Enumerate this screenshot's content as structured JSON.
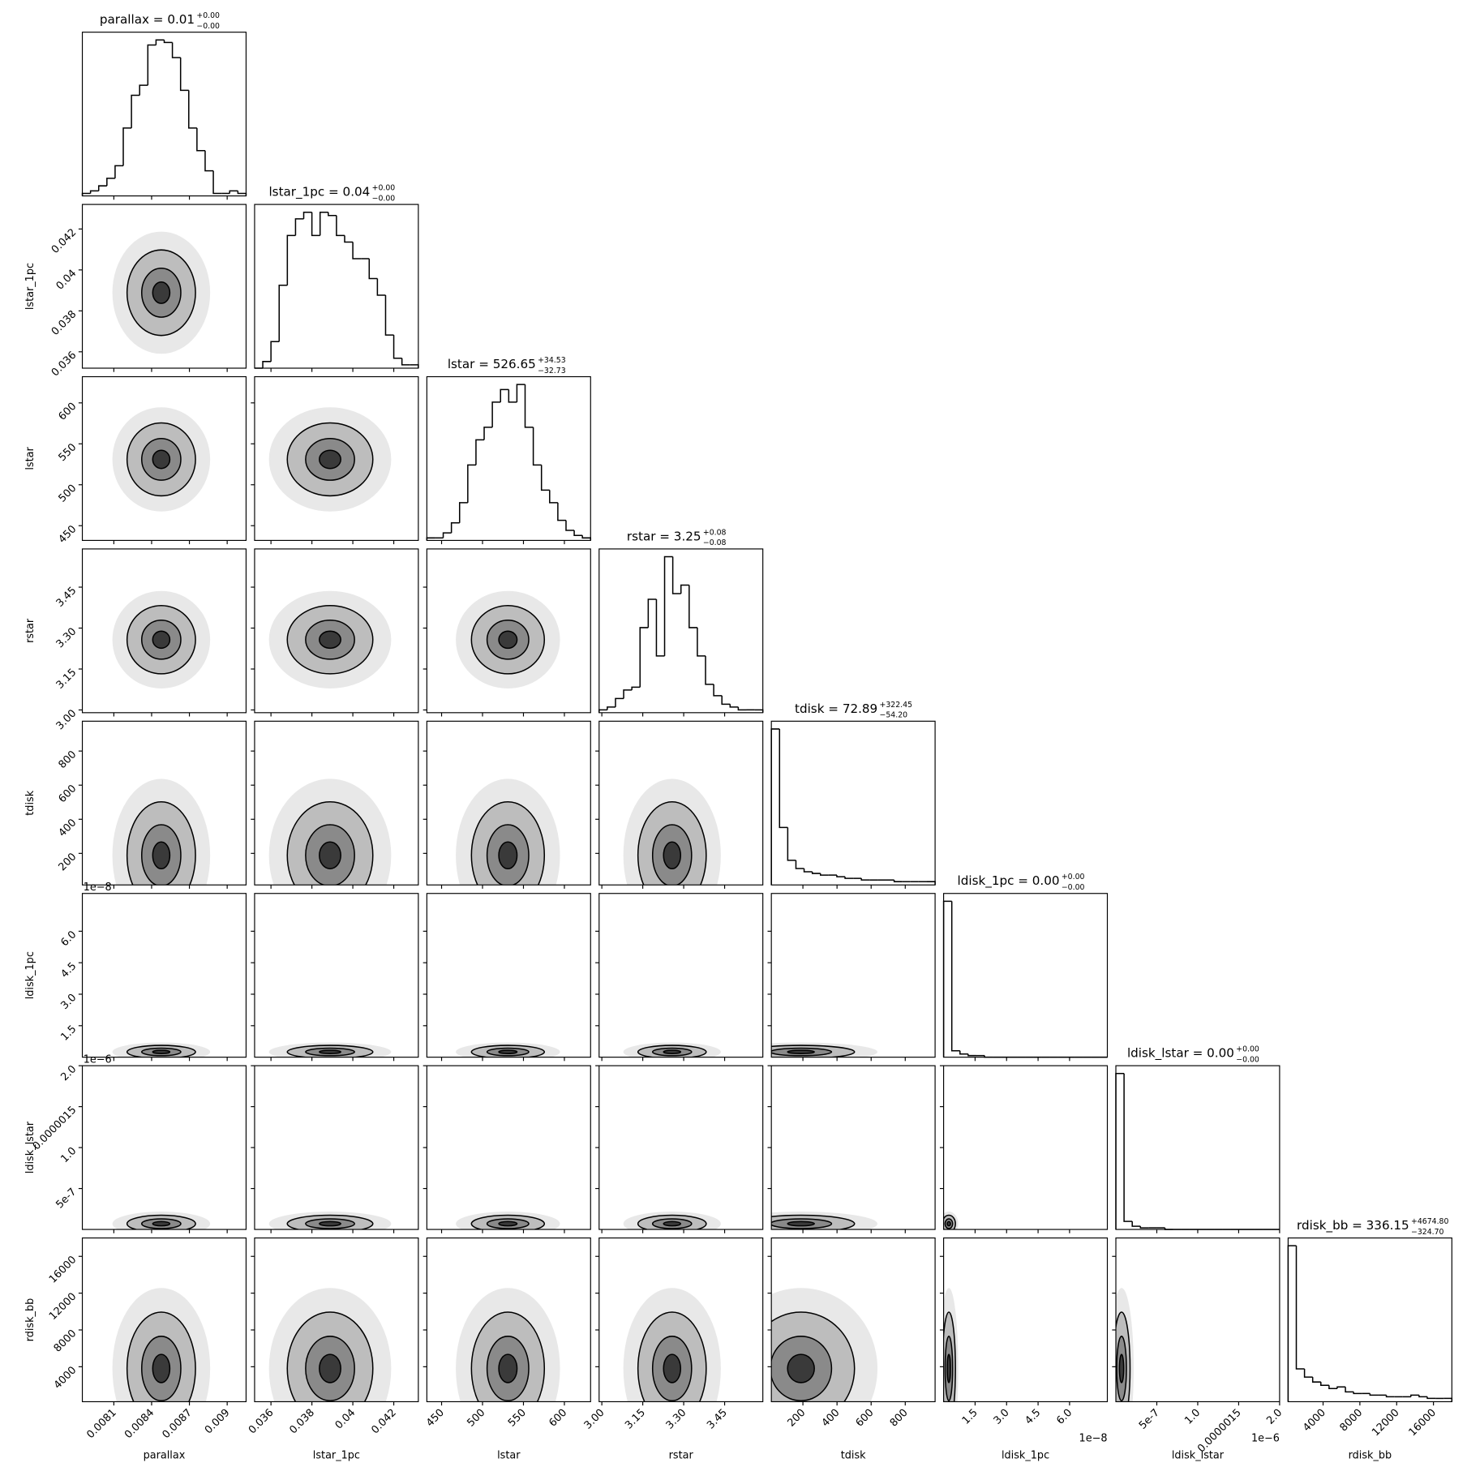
{
  "chart_data": [
    {
      "type": "histogram",
      "title": "parallax = 0.01",
      "title_upper": "+0.00",
      "title_lower": "−0.00",
      "xlabel": "parallax",
      "bins": [
        0.00785,
        0.007915,
        0.00798,
        0.008045,
        0.00811,
        0.008175,
        0.00824,
        0.008305,
        0.00837,
        0.008435,
        0.0085,
        0.008565,
        0.00863,
        0.008695,
        0.00876,
        0.008825,
        0.00889,
        0.008955,
        0.00902,
        0.009085,
        0.00915
      ],
      "values": [
        1,
        2,
        4,
        7,
        12,
        27,
        40,
        44,
        60,
        62,
        61,
        55,
        42,
        27,
        18,
        10,
        1,
        1,
        2,
        1
      ],
      "xlim": [
        0.00785,
        0.00915
      ],
      "xticks": [
        0.0081,
        0.0084,
        0.0087,
        0.009
      ],
      "color": "#000000"
    },
    {
      "type": "histogram",
      "title": "lstar_1pc = 0.04",
      "title_upper": "+0.00",
      "title_lower": "−0.00",
      "xlabel": "lstar_1pc",
      "bins": [
        0.0352,
        0.0356,
        0.036,
        0.0364,
        0.0368,
        0.0372,
        0.0376,
        0.038,
        0.0384,
        0.0388,
        0.0392,
        0.0396,
        0.04,
        0.0404,
        0.0408,
        0.0412,
        0.0416,
        0.042,
        0.0424,
        0.0428,
        0.0432
      ],
      "values": [
        0,
        2,
        8,
        25,
        40,
        45,
        47,
        40,
        47,
        46,
        40,
        38,
        33,
        33,
        27,
        22,
        10,
        3,
        1,
        1
      ],
      "xlim": [
        0.0352,
        0.0432
      ],
      "xticks": [
        0.036,
        0.038,
        0.04,
        0.042
      ],
      "color": "#000000"
    },
    {
      "type": "histogram",
      "title": "lstar = 526.65",
      "title_upper": "+34.53",
      "title_lower": "−32.73",
      "xlabel": "lstar",
      "bins": [
        432,
        442,
        452,
        462,
        472,
        482,
        492,
        502,
        512,
        522,
        532,
        542,
        552,
        562,
        572,
        582,
        592,
        602,
        612,
        622,
        632
      ],
      "values": [
        1,
        1,
        3,
        7,
        15,
        30,
        40,
        45,
        55,
        60,
        55,
        62,
        45,
        30,
        20,
        15,
        8,
        4,
        2,
        1
      ],
      "xlim": [
        432,
        632
      ],
      "xticks": [
        450,
        500,
        550,
        600
      ],
      "color": "#000000"
    },
    {
      "type": "histogram",
      "title": "rstar = 3.25",
      "title_upper": "+0.08",
      "title_lower": "−0.08",
      "xlabel": "rstar",
      "bins": [
        2.99,
        3.02,
        3.05,
        3.08,
        3.11,
        3.14,
        3.17,
        3.2,
        3.23,
        3.26,
        3.29,
        3.32,
        3.35,
        3.38,
        3.41,
        3.44,
        3.47,
        3.5,
        3.53,
        3.56,
        3.59
      ],
      "values": [
        1,
        2,
        5,
        8,
        9,
        30,
        40,
        20,
        55,
        42,
        45,
        30,
        20,
        10,
        6,
        3,
        2,
        1,
        1,
        1
      ],
      "xlim": [
        2.99,
        3.59
      ],
      "xticks": [
        {
          "value": 3,
          "label": "3.00"
        },
        3.15,
        {
          "value": 3.3,
          "label": "3.30"
        },
        3.45
      ],
      "color": "#000000"
    },
    {
      "type": "histogram",
      "title": "tdisk = 72.89",
      "title_upper": "+322.45",
      "title_lower": "−54.20",
      "xlabel": "tdisk",
      "bins": [
        15,
        63,
        111,
        159,
        207,
        255,
        303,
        351,
        399,
        447,
        495,
        543,
        591,
        639,
        687,
        735,
        783,
        831,
        879,
        927,
        975
      ],
      "values": [
        95,
        35,
        15,
        10,
        8,
        7,
        6,
        6,
        5,
        4,
        4,
        3,
        3,
        3,
        3,
        2,
        2,
        2,
        2,
        2
      ],
      "xlim": [
        15,
        975
      ],
      "xticks": [
        200,
        400,
        600,
        800
      ],
      "color": "#000000"
    },
    {
      "type": "histogram",
      "title": "ldisk_1pc = 0.00",
      "title_upper": "+0.00",
      "title_lower": "−0.00",
      "xlabel": "ldisk_1pc",
      "offset_label": "1e−8",
      "bins": [
        0,
        3.9e-09,
        7.8e-09,
        1.17e-08,
        1.56e-08,
        1.95e-08,
        2.34e-08,
        2.73e-08,
        3.12e-08,
        3.51e-08,
        3.9e-08,
        4.29e-08,
        4.68e-08,
        5.07e-08,
        5.46e-08,
        5.85e-08,
        6.24e-08,
        6.63e-08,
        7.02e-08,
        7.41e-08,
        7.8e-08
      ],
      "values": [
        98,
        4,
        2,
        1,
        1,
        0,
        0,
        0,
        0,
        0,
        0,
        0,
        0,
        0,
        0,
        0,
        0,
        0,
        0,
        0
      ],
      "xlim": [
        0,
        7.8e-08
      ],
      "xticks": [
        {
          "value": 1.5e-08,
          "label": "1.5"
        },
        {
          "value": 3e-08,
          "label": "3.0"
        },
        {
          "value": 4.5e-08,
          "label": "4.5"
        },
        {
          "value": 6e-08,
          "label": "6.0"
        }
      ],
      "color": "#000000"
    },
    {
      "type": "histogram",
      "title": "ldisk_lstar = 0.00",
      "title_upper": "+0.00",
      "title_lower": "−0.00",
      "xlabel": "ldisk_lstar",
      "offset_label": "1e−6",
      "bins": [
        0,
        1e-07,
        2e-07,
        3e-07,
        4e-07,
        5e-07,
        6e-07,
        7e-07,
        8e-07,
        9e-07,
        1e-06,
        1.1e-06,
        1.2e-06,
        1.3e-06,
        1.4e-06,
        1.5e-06,
        1.6e-06,
        1.7e-06,
        1.8e-06,
        1.9e-06,
        2e-06
      ],
      "values": [
        97,
        5,
        2,
        1,
        1,
        1,
        0,
        0,
        0,
        0,
        0,
        0,
        0,
        0,
        0,
        0,
        0,
        0,
        0,
        0
      ],
      "xlim": [
        0,
        2e-06
      ],
      "xticks": [
        5e-07,
        {
          "value": 1e-06,
          "label": "1.0"
        },
        1.5e-06,
        {
          "value": 2e-06,
          "label": "2.0"
        }
      ],
      "color": "#000000"
    },
    {
      "type": "histogram",
      "title": "rdisk_bb = 336.15",
      "title_upper": "+4674.80",
      "title_lower": "−324.70",
      "xlabel": "rdisk_bb",
      "bins": [
        200,
        1090,
        1980,
        2870,
        3760,
        4650,
        5540,
        6430,
        7320,
        8210,
        9100,
        9990,
        10880,
        11770,
        12660,
        13550,
        14440,
        15330,
        16220,
        17110,
        18000
      ],
      "values": [
        95,
        20,
        15,
        12,
        10,
        8,
        9,
        6,
        5,
        5,
        4,
        4,
        3,
        3,
        3,
        4,
        3,
        2,
        2,
        2
      ],
      "xlim": [
        200,
        18000
      ],
      "xticks": [
        4000,
        8000,
        12000,
        16000
      ],
      "color": "#000000"
    }
  ]
}
